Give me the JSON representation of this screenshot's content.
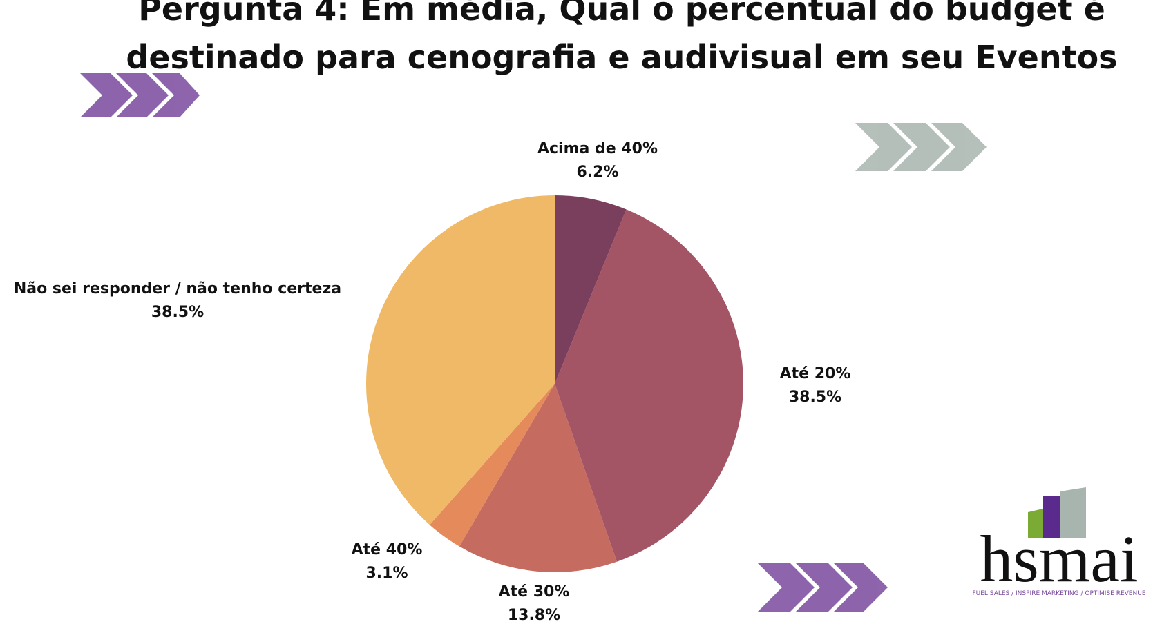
{
  "chart_data": {
    "type": "pie",
    "title": "Pergunta 4: Em média, Qual o percentual do budget é destinado para cenografia e audivisual em seu Eventos",
    "categories": [
      "Acima de 40%",
      "Até 20%",
      "Até 30%",
      "Até 40%",
      "Não sei responder / não tenho certeza"
    ],
    "values": [
      6.2,
      38.5,
      13.8,
      3.1,
      38.5
    ],
    "value_labels": [
      "6.2%",
      "38.5%",
      "13.8%",
      "3.1%",
      "38.5%"
    ],
    "colors": [
      "#7b3f5e",
      "#a45565",
      "#c66b60",
      "#e58a5a",
      "#f0b967"
    ]
  },
  "logo": {
    "text": "hsmai",
    "tagline": "FUEL SALES / INSPIRE MARKETING / OPTIMISE REVENUE"
  }
}
